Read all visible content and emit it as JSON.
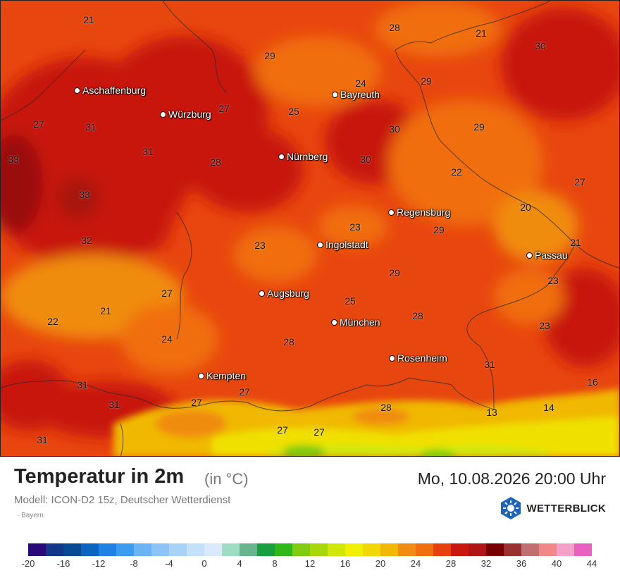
{
  "map": {
    "cities": [
      {
        "name": "Aschaffenburg"
      },
      {
        "name": "Würzburg"
      },
      {
        "name": "Bayreuth"
      },
      {
        "name": "Nürnberg"
      },
      {
        "name": "Regensburg"
      },
      {
        "name": "Ingolstadt"
      },
      {
        "name": "Passau"
      },
      {
        "name": "Augsburg"
      },
      {
        "name": "München"
      },
      {
        "name": "Rosenheim"
      },
      {
        "name": "Kempten"
      }
    ],
    "temperature_labels": [
      "21",
      "28",
      "21",
      "30",
      "29",
      "24",
      "29",
      "27",
      "25",
      "31",
      "27",
      "30",
      "29",
      "33",
      "31",
      "28",
      "30",
      "22",
      "27",
      "33",
      "20",
      "23",
      "29",
      "32",
      "23",
      "21",
      "27",
      "29",
      "23",
      "21",
      "25",
      "28",
      "22",
      "24",
      "23",
      "28",
      "31",
      "31",
      "27",
      "16",
      "31",
      "27",
      "28",
      "13",
      "14",
      "27",
      "27",
      "31"
    ]
  },
  "footer": {
    "title": "Temperatur in 2m",
    "unit": "(in °C)",
    "datetime": "Mo, 10.08.2026 20:00 Uhr",
    "model": "Modell: ICON-D2 15z, Deutscher Wetterdienst",
    "region": "· Bayern",
    "brand": "WETTERBLICK"
  },
  "legend": {
    "ticks": [
      "-20",
      "-16",
      "-12",
      "-8",
      "-4",
      "0",
      "4",
      "8",
      "12",
      "16",
      "20",
      "24",
      "28",
      "32",
      "36",
      "40",
      "44"
    ],
    "colors": [
      "#2a0a78",
      "#13388a",
      "#0a4a94",
      "#0a64c0",
      "#1e82e6",
      "#3c9cf0",
      "#6ab4f6",
      "#8cc4f8",
      "#a8d2f8",
      "#c4e0fa",
      "#d8eafc",
      "#9edcc4",
      "#68b48c",
      "#18a040",
      "#30b818",
      "#80cc10",
      "#a8d80a",
      "#d0e808",
      "#f0f000",
      "#f0d800",
      "#f0b800",
      "#f08c10",
      "#f06e10",
      "#e8400c",
      "#c81810",
      "#b01414",
      "#780000",
      "#9a3030",
      "#c07070",
      "#f08888",
      "#f4a0c8",
      "#e860c0"
    ]
  }
}
